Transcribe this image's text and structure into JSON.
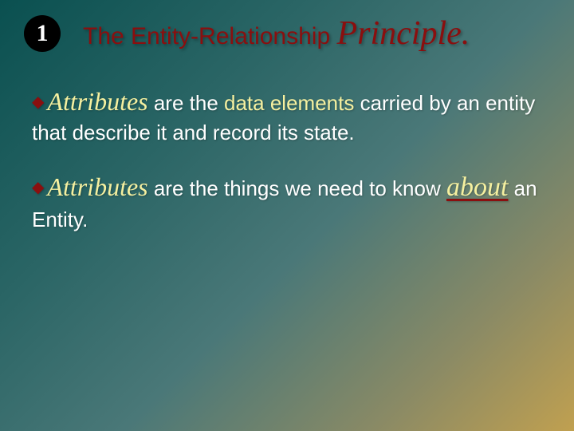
{
  "header": {
    "number": "1",
    "title_part1": "The Entity-Relationship ",
    "title_part2": "Principle.",
    "title_color": "#8a0f0f",
    "circle_bg": "#000000",
    "circle_fg": "#ffffff"
  },
  "bullets": [
    {
      "lead": "Attributes",
      "rest_before": " are the ",
      "highlight": "data elements",
      "rest_after": " carried by an entity that describe it and record its state."
    },
    {
      "lead": "Attributes",
      "rest_before": " are the things we need to know ",
      "about_word": "about",
      "rest_after": " an Entity."
    }
  ],
  "style": {
    "highlight_color": "#f5f0a0",
    "body_text_color": "#ffffff",
    "diamond_color": "#8a0f0f",
    "title_fontsize": 30,
    "principle_fontsize": 42,
    "body_fontsize": 26,
    "lead_fontsize": 32,
    "about_fontsize": 34,
    "background_gradient": [
      "#0a5050",
      "#2a6565",
      "#4a7878",
      "#8a8a65",
      "#c0a050"
    ]
  }
}
